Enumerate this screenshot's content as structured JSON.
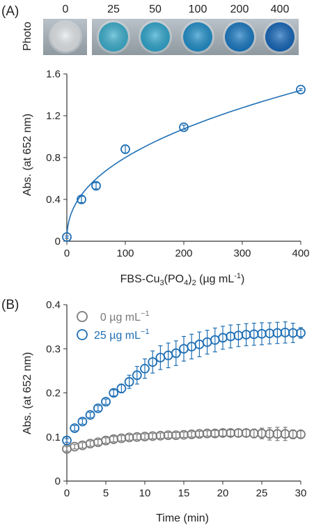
{
  "figure": {
    "panel_a_label": "(A)",
    "panel_b_label": "(B)",
    "photo_label": "Photo",
    "photo_wells": [
      {
        "label": "0",
        "color": "#e6eaed"
      },
      {
        "label": "25",
        "color": "#3ab0cf"
      },
      {
        "label": "50",
        "color": "#2ea7cf"
      },
      {
        "label": "100",
        "color": "#1e8fcb"
      },
      {
        "label": "200",
        "color": "#1679c4"
      },
      {
        "label": "400",
        "color": "#1266bb"
      }
    ]
  },
  "chart_data": [
    {
      "type": "scatter",
      "panel": "(A)",
      "xlabel_main": "FBS-Cu",
      "xlabel_sub1": "3",
      "xlabel_mid": "(PO",
      "xlabel_sub2": "4",
      "xlabel_mid2": ")",
      "xlabel_sub3": "2",
      "xlabel_unit": " (µg mL",
      "xlabel_sup": "-1",
      "xlabel_end": ")",
      "ylabel": "Abs. (at 652 nm)",
      "xlim": [
        0,
        400
      ],
      "ylim": [
        0,
        1.6
      ],
      "xticks": [
        "0",
        "100",
        "200",
        "300",
        "400"
      ],
      "yticks": [
        "0",
        "0.4",
        "0.8",
        "1.2",
        "1.6"
      ],
      "x": [
        0,
        25,
        50,
        100,
        200,
        400
      ],
      "y": [
        0.04,
        0.4,
        0.53,
        0.88,
        1.09,
        1.45
      ],
      "err": [
        0.01,
        0.03,
        0.03,
        0.04,
        0.02,
        0.01
      ],
      "fit": "power-law trend line",
      "color": "#1f6fb4",
      "grid": false
    },
    {
      "type": "scatter",
      "panel": "(B)",
      "xlabel": "Time (min)",
      "ylabel": "Abs. (at 652 nm)",
      "xlim": [
        0,
        30
      ],
      "ylim": [
        0,
        0.4
      ],
      "xticks": [
        "0",
        "5",
        "10",
        "15",
        "20",
        "25",
        "30"
      ],
      "yticks": [
        "0",
        "0.1",
        "0.2",
        "0.3",
        "0.4"
      ],
      "legend_position": "top-left",
      "grid": false,
      "series": [
        {
          "name": "0 µg mL",
          "name_sup": "−1",
          "color": "#7a7a7a",
          "x": [
            0,
            1,
            2,
            3,
            4,
            5,
            6,
            7,
            8,
            9,
            10,
            11,
            12,
            13,
            14,
            15,
            16,
            17,
            18,
            19,
            20,
            21,
            22,
            23,
            24,
            25,
            26,
            27,
            28,
            29,
            30
          ],
          "y": [
            0.073,
            0.078,
            0.081,
            0.085,
            0.088,
            0.092,
            0.095,
            0.097,
            0.099,
            0.1,
            0.101,
            0.102,
            0.103,
            0.104,
            0.104,
            0.105,
            0.106,
            0.107,
            0.108,
            0.108,
            0.109,
            0.109,
            0.109,
            0.109,
            0.108,
            0.108,
            0.107,
            0.107,
            0.107,
            0.106,
            0.106
          ],
          "err": [
            0.005,
            0.005,
            0.006,
            0.006,
            0.006,
            0.006,
            0.006,
            0.006,
            0.006,
            0.006,
            0.006,
            0.006,
            0.006,
            0.006,
            0.006,
            0.006,
            0.006,
            0.006,
            0.006,
            0.007,
            0.007,
            0.007,
            0.008,
            0.008,
            0.01,
            0.012,
            0.014,
            0.015,
            0.015,
            0.01,
            0.008
          ]
        },
        {
          "name": "25 µg mL",
          "name_sup": "−1",
          "color": "#1f6fb4",
          "x": [
            0,
            1,
            2,
            3,
            4,
            5,
            6,
            7,
            8,
            9,
            10,
            11,
            12,
            13,
            14,
            15,
            16,
            17,
            18,
            19,
            20,
            21,
            22,
            23,
            24,
            25,
            26,
            27,
            28,
            29,
            30
          ],
          "y": [
            0.092,
            0.12,
            0.135,
            0.15,
            0.165,
            0.18,
            0.2,
            0.21,
            0.225,
            0.24,
            0.255,
            0.27,
            0.28,
            0.285,
            0.29,
            0.3,
            0.305,
            0.31,
            0.315,
            0.32,
            0.325,
            0.328,
            0.33,
            0.332,
            0.333,
            0.334,
            0.335,
            0.336,
            0.337,
            0.336,
            0.336
          ],
          "err": [
            0.004,
            0.006,
            0.006,
            0.006,
            0.006,
            0.006,
            0.007,
            0.01,
            0.015,
            0.02,
            0.022,
            0.025,
            0.027,
            0.028,
            0.028,
            0.028,
            0.028,
            0.028,
            0.027,
            0.027,
            0.026,
            0.026,
            0.025,
            0.025,
            0.025,
            0.025,
            0.024,
            0.024,
            0.024,
            0.022,
            0.012
          ]
        }
      ]
    }
  ]
}
